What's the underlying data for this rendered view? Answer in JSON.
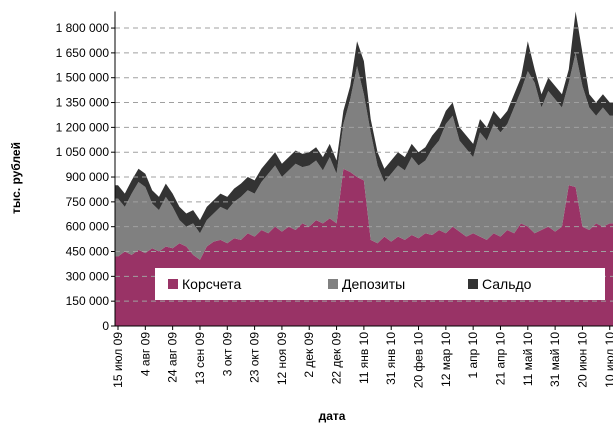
{
  "chart_data": {
    "type": "stacked_area",
    "x_label": "дата",
    "y_label": "тыс. рублей",
    "categories": [
      "15 июл 09",
      null,
      null,
      null,
      "4 авг 09",
      null,
      null,
      null,
      "24 авг 09",
      null,
      null,
      null,
      "13 сен 09",
      null,
      null,
      null,
      "3 окт 09",
      null,
      null,
      null,
      "23 окт 09",
      null,
      null,
      null,
      "12 ноя 09",
      null,
      null,
      null,
      "2 дек 09",
      null,
      null,
      null,
      "22 дек 09",
      null,
      null,
      null,
      "11 янв 10",
      null,
      null,
      null,
      "31 янв 10",
      null,
      null,
      null,
      "20 фев 10",
      null,
      null,
      null,
      "12 мар 10",
      null,
      null,
      null,
      "1 апр 10",
      null,
      null,
      null,
      "21 апр 10",
      null,
      null,
      null,
      "11 май 10",
      null,
      null,
      null,
      "31 май 10",
      null,
      null,
      null,
      "20 июн 10",
      null,
      null,
      null,
      "10 июл 10"
    ],
    "series": [
      {
        "name": "Корсчета",
        "color": "#993366",
        "values": [
          420000,
          450000,
          430000,
          460000,
          440000,
          470000,
          450000,
          480000,
          470000,
          500000,
          480000,
          430000,
          400000,
          480000,
          510000,
          520000,
          500000,
          530000,
          520000,
          560000,
          540000,
          580000,
          560000,
          600000,
          570000,
          600000,
          580000,
          620000,
          600000,
          640000,
          620000,
          650000,
          620000,
          950000,
          930000,
          900000,
          880000,
          520000,
          500000,
          540000,
          510000,
          540000,
          520000,
          550000,
          530000,
          560000,
          550000,
          580000,
          560000,
          600000,
          570000,
          540000,
          560000,
          540000,
          520000,
          560000,
          540000,
          580000,
          560000,
          620000,
          600000,
          560000,
          580000,
          600000,
          570000,
          600000,
          850000,
          840000,
          600000,
          580000,
          620000,
          600000,
          620000
        ]
      },
      {
        "name": "Депозиты",
        "color": "#808080",
        "values": [
          350000,
          270000,
          370000,
          410000,
          400000,
          270000,
          250000,
          300000,
          250000,
          140000,
          120000,
          190000,
          160000,
          160000,
          170000,
          200000,
          200000,
          220000,
          260000,
          260000,
          260000,
          290000,
          360000,
          370000,
          330000,
          340000,
          400000,
          340000,
          370000,
          360000,
          320000,
          370000,
          300000,
          270000,
          440000,
          670000,
          520000,
          650000,
          470000,
          330000,
          410000,
          430000,
          420000,
          470000,
          440000,
          440000,
          520000,
          540000,
          660000,
          670000,
          550000,
          530000,
          460000,
          630000,
          600000,
          660000,
          630000,
          640000,
          760000,
          800000,
          940000,
          910000,
          740000,
          820000,
          800000,
          720000,
          620000,
          810000,
          850000,
          740000,
          650000,
          720000,
          650000
        ]
      },
      {
        "name": "Сальдо",
        "color": "#333333",
        "values": [
          80000,
          80000,
          80000,
          80000,
          80000,
          80000,
          80000,
          80000,
          80000,
          80000,
          80000,
          80000,
          80000,
          80000,
          80000,
          80000,
          80000,
          80000,
          80000,
          80000,
          80000,
          80000,
          80000,
          80000,
          80000,
          80000,
          80000,
          80000,
          80000,
          80000,
          80000,
          80000,
          80000,
          80000,
          80000,
          150000,
          200000,
          80000,
          80000,
          80000,
          80000,
          80000,
          80000,
          80000,
          80000,
          80000,
          80000,
          80000,
          80000,
          80000,
          80000,
          80000,
          80000,
          80000,
          80000,
          80000,
          80000,
          80000,
          80000,
          80000,
          180000,
          80000,
          80000,
          80000,
          80000,
          80000,
          80000,
          250000,
          200000,
          80000,
          80000,
          80000,
          80000
        ]
      }
    ],
    "ylim": [
      0,
      1900000
    ],
    "yticks": [
      0,
      {
        "value": 150000,
        "label": "150 000"
      },
      {
        "value": 300000,
        "label": "300 000"
      },
      {
        "value": 450000,
        "label": "450 000"
      },
      {
        "value": 600000,
        "label": "600 000"
      },
      {
        "value": 750000,
        "label": "750 000"
      },
      {
        "value": 900000,
        "label": "900 000"
      },
      {
        "value": 1050000,
        "label": "1 050 000"
      },
      {
        "value": 1200000,
        "label": "1 200 000"
      },
      {
        "value": 1350000,
        "label": "1 350 000"
      },
      {
        "value": 1500000,
        "label": "1 500 000"
      },
      {
        "value": 1650000,
        "label": "1 650 000"
      },
      {
        "value": 1800000,
        "label": "1 800 000"
      }
    ],
    "grid": true,
    "legend": "bottom"
  }
}
